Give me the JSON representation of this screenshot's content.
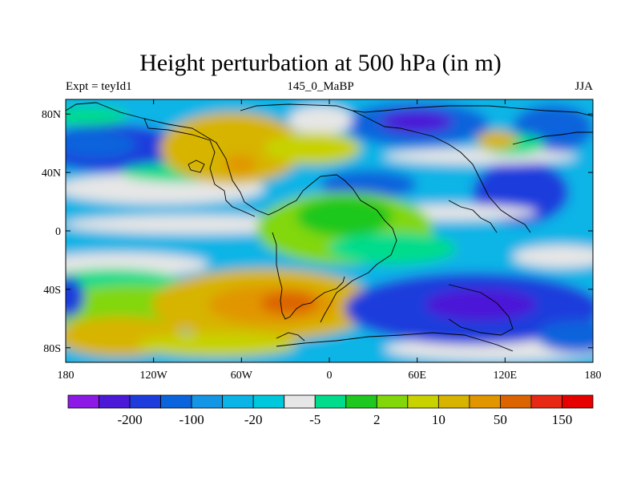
{
  "title": "Height perturbation at 500 hPa (in m)",
  "subtitle_left": "Expt = teyId1",
  "subtitle_center": "145_0_MaBP",
  "subtitle_right": "JJA",
  "axes": {
    "x_ticks": [
      {
        "value": -180,
        "label": "180"
      },
      {
        "value": -120,
        "label": "120W"
      },
      {
        "value": -60,
        "label": "60W"
      },
      {
        "value": 0,
        "label": "0"
      },
      {
        "value": 60,
        "label": "60E"
      },
      {
        "value": 120,
        "label": "120E"
      },
      {
        "value": 180,
        "label": "180"
      }
    ],
    "y_ticks": [
      {
        "value": 80,
        "label": "80N"
      },
      {
        "value": 40,
        "label": "40N"
      },
      {
        "value": 0,
        "label": "0"
      },
      {
        "value": -40,
        "label": "40S"
      },
      {
        "value": -80,
        "label": "80S"
      }
    ],
    "lon_range": [
      -180,
      180
    ],
    "lat_range": [
      -90,
      90
    ]
  },
  "colorbar": {
    "colors": [
      "#8c19e6",
      "#4b19d7",
      "#1e3cdc",
      "#0a64dc",
      "#1496e6",
      "#0ab4e6",
      "#00c8dc",
      "#e6e6e6",
      "#00dc8c",
      "#1ec81e",
      "#82d70a",
      "#c8d200",
      "#d7b400",
      "#e19600",
      "#dc6400",
      "#e62814",
      "#e60000"
    ],
    "labels": [
      {
        "after_index": 1,
        "text": "-200"
      },
      {
        "after_index": 3,
        "text": "-100"
      },
      {
        "after_index": 5,
        "text": "-20"
      },
      {
        "after_index": 7,
        "text": "-5"
      },
      {
        "after_index": 9,
        "text": "2"
      },
      {
        "after_index": 11,
        "text": "10"
      },
      {
        "after_index": 13,
        "text": "50"
      },
      {
        "after_index": 15,
        "text": "150"
      }
    ]
  }
}
